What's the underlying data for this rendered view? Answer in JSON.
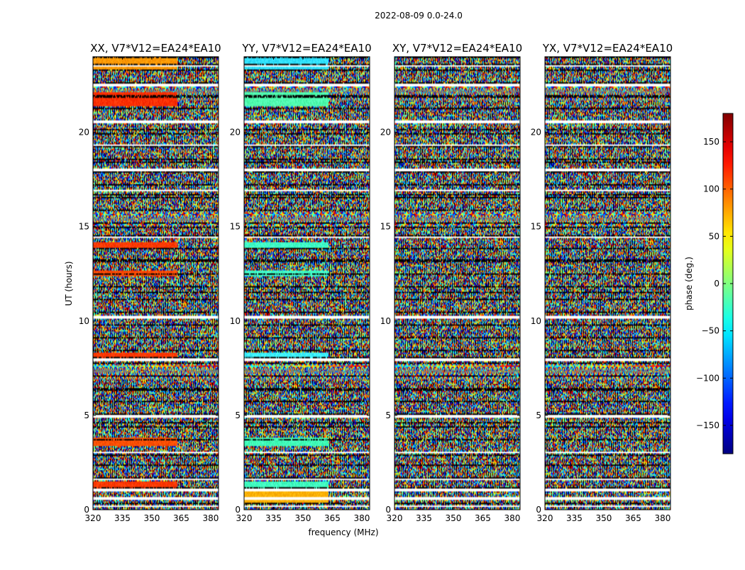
{
  "chart_data": {
    "type": "heatmap",
    "title": "2022-08-09 0.0-24.0",
    "xlabel": "frequency (MHz)",
    "ylabel": "UT (hours)",
    "xlim": [
      320,
      384
    ],
    "ylim": [
      0,
      24
    ],
    "x_ticks": [
      320,
      335,
      350,
      365,
      380
    ],
    "y_ticks": [
      0,
      5,
      10,
      15,
      20
    ],
    "colormap": "jet",
    "colorbar": {
      "label": "phase (deg.)",
      "range": [
        -180,
        180
      ],
      "ticks": [
        -150,
        -100,
        -50,
        0,
        50,
        100,
        150
      ],
      "tick_labels": [
        "−150",
        "−100",
        "−50",
        "0",
        "50",
        "100",
        "150"
      ]
    },
    "panels": [
      {
        "title": "XX, V7*V12=EA24*EA10",
        "polarization": "XX"
      },
      {
        "title": "YY, V7*V12=EA24*EA10",
        "polarization": "YY"
      },
      {
        "title": "XY, V7*V12=EA24*EA10",
        "polarization": "XY"
      },
      {
        "title": "YX, V7*V12=EA24*EA10",
        "polarization": "YX"
      }
    ],
    "flagged_hours": [
      0.2,
      0.6,
      1.05,
      1.6,
      3.05,
      4.95,
      7.95,
      10.2,
      14.45,
      16.9,
      18.0,
      19.3,
      20.55,
      22.5,
      23.5
    ],
    "smooth_bands": [
      {
        "panel": "XX",
        "from": 0.95,
        "to": 1.5,
        "color": "#ff3a00"
      },
      {
        "panel": "XX",
        "from": 3.4,
        "to": 3.8,
        "color": "#ff5000"
      },
      {
        "panel": "XX",
        "from": 7.95,
        "to": 8.3,
        "color": "#ff3a00"
      },
      {
        "panel": "XX",
        "from": 12.35,
        "to": 12.7,
        "color": "#ff4a00"
      },
      {
        "panel": "XX",
        "from": 13.9,
        "to": 14.2,
        "color": "#ff3a00"
      },
      {
        "panel": "XX",
        "from": 21.4,
        "to": 22.1,
        "color": "#ff3000"
      },
      {
        "panel": "XX",
        "from": 23.3,
        "to": 24.0,
        "color": "#ff9800"
      },
      {
        "panel": "YY",
        "from": 0.4,
        "to": 1.0,
        "color": "#ffb000"
      },
      {
        "panel": "YY",
        "from": 1.0,
        "to": 1.5,
        "color": "#40ffc0"
      },
      {
        "panel": "YY",
        "from": 3.4,
        "to": 3.8,
        "color": "#40ffb8"
      },
      {
        "panel": "YY",
        "from": 7.95,
        "to": 8.3,
        "color": "#3cf0ff"
      },
      {
        "panel": "YY",
        "from": 12.35,
        "to": 12.7,
        "color": "#40ffc8"
      },
      {
        "panel": "YY",
        "from": 13.9,
        "to": 14.2,
        "color": "#40ffc8"
      },
      {
        "panel": "YY",
        "from": 21.4,
        "to": 22.1,
        "color": "#50ffb0"
      },
      {
        "panel": "YY",
        "from": 23.3,
        "to": 24.0,
        "color": "#30e0ff"
      }
    ],
    "fringe_bands": [
      {
        "from": 6.9,
        "to": 7.8
      },
      {
        "from": 14.9,
        "to": 15.9
      },
      {
        "from": 21.7,
        "to": 22.6
      }
    ]
  }
}
